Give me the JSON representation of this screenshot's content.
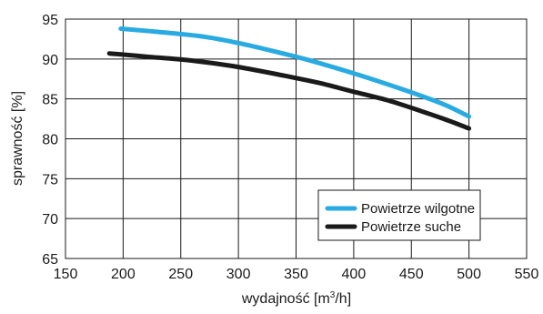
{
  "chart_data": {
    "type": "line",
    "title": "",
    "xlabel": "wydajność [m",
    "xlabel_sup": "3",
    "xlabel_tail": "/h]",
    "ylabel": "sprawność  [%]",
    "xlim": [
      150,
      550
    ],
    "ylim": [
      65,
      95
    ],
    "xticks": [
      150,
      200,
      250,
      300,
      350,
      400,
      450,
      500,
      550
    ],
    "yticks": [
      65,
      70,
      75,
      80,
      85,
      90,
      95
    ],
    "grid": true,
    "legend_position": "bottom-right",
    "series": [
      {
        "name": "Powietrze wilgotne",
        "color": "#29abe2",
        "points": [
          [
            198,
            93.8
          ],
          [
            230,
            93.4
          ],
          [
            270,
            92.8
          ],
          [
            300,
            92.0
          ],
          [
            330,
            91.0
          ],
          [
            360,
            89.9
          ],
          [
            400,
            88.2
          ],
          [
            430,
            86.8
          ],
          [
            460,
            85.3
          ],
          [
            480,
            84.2
          ],
          [
            500,
            82.8
          ]
        ]
      },
      {
        "name": "Powietrze suche",
        "color": "#1a1a1a",
        "points": [
          [
            188,
            90.7
          ],
          [
            220,
            90.3
          ],
          [
            260,
            89.8
          ],
          [
            300,
            89.0
          ],
          [
            340,
            87.9
          ],
          [
            370,
            87.0
          ],
          [
            400,
            85.9
          ],
          [
            430,
            84.8
          ],
          [
            460,
            83.4
          ],
          [
            480,
            82.4
          ],
          [
            500,
            81.3
          ]
        ]
      }
    ]
  }
}
